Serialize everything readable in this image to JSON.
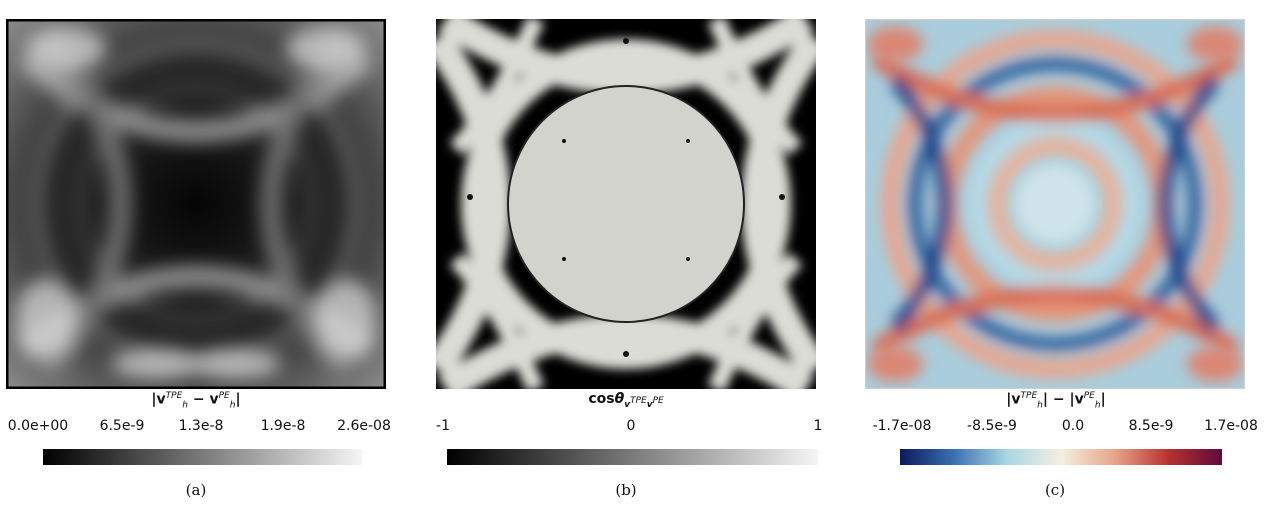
{
  "panels": [
    {
      "id": "a",
      "legend_title": "|v_h^{TPE} − v_h^{PE}|",
      "tick_labels": [
        "0.0e+00",
        "6.5e-9",
        "1.3e-8",
        "1.9e-8",
        "2.6e-08"
      ],
      "colormap": [
        "#000000",
        "#f5f5f5"
      ],
      "caption": "(a)"
    },
    {
      "id": "b",
      "legend_title": "cosθ_{v_h^{TPE} v_h^{PE}}",
      "tick_labels": [
        "-1",
        "0",
        "1"
      ],
      "colormap": [
        "#000000",
        "#f5f5f5"
      ],
      "caption": "(b)"
    },
    {
      "id": "c",
      "legend_title": "|v_h^{TPE}| − |v_h^{PE}|",
      "tick_labels": [
        "-1.7e-08",
        "-8.5e-9",
        "0.0",
        "8.5e-9",
        "1.7e-08"
      ],
      "colormap": [
        "#0b1a5c",
        "#3b6fb0",
        "#a9d7e6",
        "#f4efe0",
        "#e6a58a",
        "#b8322e",
        "#5e0a3a"
      ],
      "caption": "(c)"
    }
  ],
  "legend_text": {
    "a": {
      "v": "v",
      "sup1": "TPE",
      "sub1": "h",
      "minus": " − ",
      "sup2": "PE",
      "sub2": "h"
    },
    "b": {
      "cos": "cos",
      "theta": "θ",
      "sub": "v",
      "subsup1": "TPE",
      "subsup2": "PE"
    },
    "c": {
      "v": "v",
      "sup1": "TPE",
      "sub1": "h",
      "minus": " − ",
      "sup2": "PE",
      "sub2": "h"
    }
  }
}
